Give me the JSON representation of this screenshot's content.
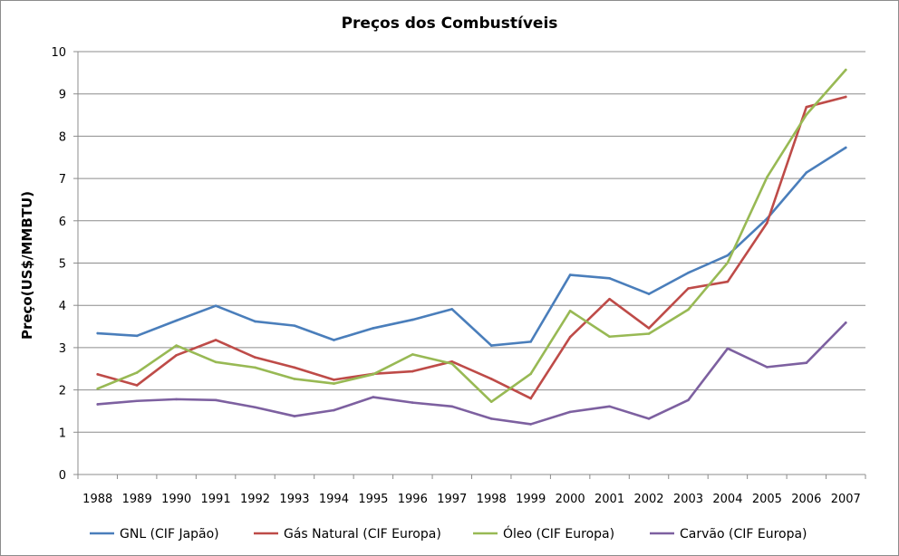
{
  "chart_data": {
    "type": "line",
    "title": "Preços dos Combustíveis",
    "xlabel": "",
    "ylabel": "Preço(US$/MMBTU)",
    "ylim": [
      0,
      10
    ],
    "yticks": [
      "0",
      "1",
      "2",
      "3",
      "4",
      "5",
      "6",
      "7",
      "8",
      "9",
      "10"
    ],
    "grid": true,
    "legend_position": "bottom",
    "categories": [
      "1988",
      "1989",
      "1990",
      "1991",
      "1992",
      "1993",
      "1994",
      "1995",
      "1996",
      "1997",
      "1998",
      "1999",
      "2000",
      "2001",
      "2002",
      "2003",
      "2004",
      "2005",
      "2006",
      "2007"
    ],
    "series": [
      {
        "name": "GNL (CIF Japão)",
        "color": "#4a7ebb",
        "values": [
          3.34,
          3.28,
          3.64,
          3.99,
          3.62,
          3.52,
          3.18,
          3.46,
          3.66,
          3.91,
          3.05,
          3.14,
          4.72,
          4.64,
          4.27,
          4.77,
          5.18,
          6.05,
          7.14,
          7.73
        ]
      },
      {
        "name": "Gás Natural (CIF Europa)",
        "color": "#be4b48",
        "values": [
          2.37,
          2.11,
          2.82,
          3.18,
          2.77,
          2.53,
          2.24,
          2.38,
          2.44,
          2.67,
          2.26,
          1.8,
          3.25,
          4.15,
          3.46,
          4.4,
          4.56,
          5.95,
          8.69,
          8.93
        ]
      },
      {
        "name": "Óleo (CIF Europa)",
        "color": "#98b954",
        "values": [
          2.03,
          2.41,
          3.05,
          2.66,
          2.53,
          2.26,
          2.15,
          2.37,
          2.84,
          2.62,
          1.72,
          2.38,
          3.87,
          3.26,
          3.33,
          3.9,
          5.01,
          7.03,
          8.51,
          9.57
        ]
      },
      {
        "name": "Carvão (CIF Europa)",
        "color": "#7d60a0",
        "values": [
          1.66,
          1.74,
          1.78,
          1.76,
          1.59,
          1.38,
          1.52,
          1.83,
          1.7,
          1.61,
          1.32,
          1.19,
          1.48,
          1.61,
          1.32,
          1.76,
          2.98,
          2.54,
          2.64,
          3.59
        ]
      }
    ]
  }
}
